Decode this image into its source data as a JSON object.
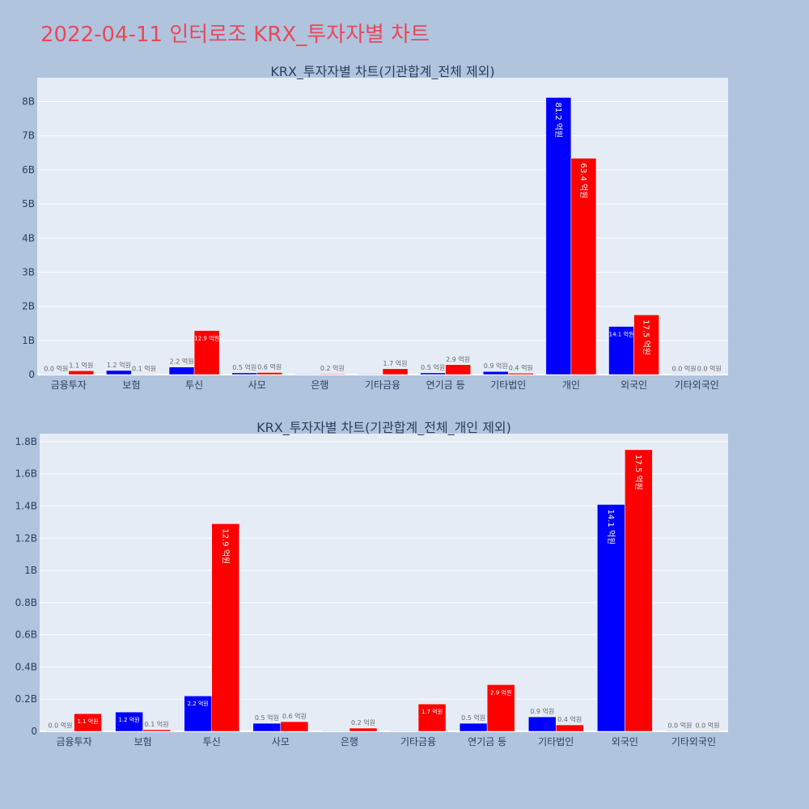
{
  "page": {
    "title": "2022-04-11 인터로조 KRX_투자자별 차트"
  },
  "colors": {
    "buy": "#0000ff",
    "sell": "#ff0000",
    "plot_bg": "#e5ecf6",
    "grid": "#ffffff",
    "page_bg": "#b0c4de",
    "title": "#e8495a"
  },
  "chart_data": [
    {
      "type": "bar",
      "title": "KRX_투자자별 차트(기관합계_전체 제외)",
      "categories": [
        "금융투자",
        "보험",
        "투신",
        "사모",
        "은행",
        "기타금융",
        "연기금 등",
        "기타법인",
        "개인",
        "외국인",
        "기타외국인"
      ],
      "series": [
        {
          "values": [
            0.0,
            0.12,
            0.22,
            0.05,
            0.0,
            0.0,
            0.05,
            0.09,
            8.12,
            1.41,
            0.0
          ],
          "labels": [
            "0.0 억원",
            "1.2 억원",
            "2.2 억원",
            "0.5 억원",
            "",
            "",
            "0.5 억원",
            "0.9 억원",
            "81.2 억원",
            "14.1 억원",
            "0.0 억원"
          ]
        },
        {
          "values": [
            0.11,
            0.01,
            1.29,
            0.06,
            0.02,
            0.17,
            0.29,
            0.04,
            6.34,
            1.75,
            0.0
          ],
          "labels": [
            "1.1 억원",
            "0.1 억원",
            "12.9 억원",
            "0.6 억원",
            "0.2 억원",
            "1.7 억원",
            "2.9 억원",
            "0.4 억원",
            "63.4 억원",
            "17.5 억원",
            "0.0 억원"
          ]
        }
      ],
      "yticks": [
        0,
        1,
        2,
        3,
        4,
        5,
        6,
        7,
        8
      ],
      "ytick_labels": [
        "0",
        "1B",
        "2B",
        "3B",
        "4B",
        "5B",
        "6B",
        "7B",
        "8B"
      ],
      "ylim": [
        0,
        8.7
      ],
      "xlabel": "",
      "ylabel": "",
      "grid": true
    },
    {
      "type": "bar",
      "title": "KRX_투자자별 차트(기관합계_전체_개인 제외)",
      "categories": [
        "금융투자",
        "보험",
        "투신",
        "사모",
        "은행",
        "기타금융",
        "연기금 등",
        "기타법인",
        "외국인",
        "기타외국인"
      ],
      "series": [
        {
          "values": [
            0.0,
            0.12,
            0.22,
            0.05,
            0.0,
            0.0,
            0.05,
            0.09,
            1.41,
            0.0
          ],
          "labels": [
            "0.0 억원",
            "1.2 억원",
            "2.2 억원",
            "0.5 억원",
            "",
            "",
            "0.5 억원",
            "0.9 억원",
            "14.1 억원",
            "0.0 억원"
          ]
        },
        {
          "values": [
            0.11,
            0.01,
            1.29,
            0.06,
            0.02,
            0.17,
            0.29,
            0.04,
            1.75,
            0.0
          ],
          "labels": [
            "1.1 억원",
            "0.1 억원",
            "12.9 억원",
            "0.6 억원",
            "0.2 억원",
            "1.7 억원",
            "2.9 억원",
            "0.4 억원",
            "17.5 억원",
            "0.0 억원"
          ]
        }
      ],
      "yticks": [
        0,
        0.2,
        0.4,
        0.6,
        0.8,
        1.0,
        1.2,
        1.4,
        1.6,
        1.8
      ],
      "ytick_labels": [
        "0",
        "0.2B",
        "0.4B",
        "0.6B",
        "0.8B",
        "1B",
        "1.2B",
        "1.4B",
        "1.6B",
        "1.8B"
      ],
      "ylim": [
        0,
        1.85
      ],
      "xlabel": "",
      "ylabel": "",
      "grid": true
    }
  ]
}
